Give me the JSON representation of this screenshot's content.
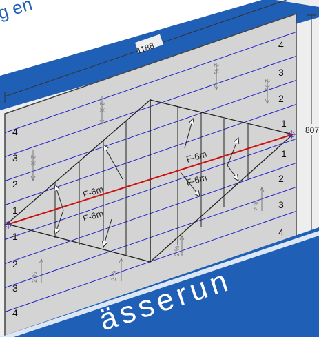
{
  "banner_top": {
    "text": "g en"
  },
  "banner_bottom": {
    "text": "ässerun"
  },
  "dimensions": {
    "width": "1188",
    "height": "807"
  },
  "slope_label": "2 %",
  "arrow_label": "F-6m",
  "contour_labels": {
    "left": [
      "4",
      "3",
      "2",
      "1",
      "1",
      "2",
      "3",
      "4"
    ],
    "right": [
      "4",
      "3",
      "2",
      "1",
      "1",
      "2",
      "3",
      "4"
    ]
  },
  "colors": {
    "roof_fill": "#d4d4d4",
    "panel": "#eeeeee",
    "banner": "#1f5fb6",
    "contour": "#2020cc",
    "ridge": "#cc1111"
  }
}
